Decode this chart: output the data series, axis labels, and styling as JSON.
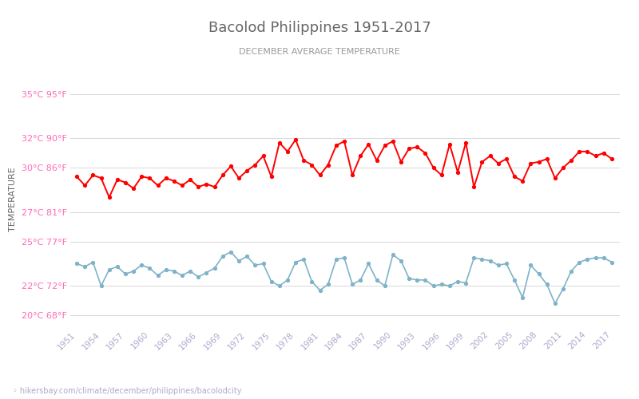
{
  "title": "Bacolod Philippines 1951-2017",
  "subtitle": "DECEMBER AVERAGE TEMPERATURE",
  "ylabel": "TEMPERATURE",
  "url_text": "hikersbay.com/climate/december/philippines/bacolodcity",
  "background_color": "#ffffff",
  "grid_color": "#d8d8d8",
  "title_color": "#666666",
  "subtitle_color": "#999999",
  "ylabel_color": "#666666",
  "tick_label_color": "#aaaacc",
  "ytick_color": "#ff69b4",
  "night_color": "#7fb3c8",
  "day_color": "#ff0000",
  "years": [
    1951,
    1952,
    1953,
    1954,
    1955,
    1956,
    1957,
    1958,
    1959,
    1960,
    1961,
    1962,
    1963,
    1964,
    1965,
    1966,
    1967,
    1968,
    1969,
    1970,
    1971,
    1972,
    1973,
    1974,
    1975,
    1976,
    1977,
    1978,
    1979,
    1980,
    1981,
    1982,
    1983,
    1984,
    1985,
    1986,
    1987,
    1988,
    1989,
    1990,
    1991,
    1992,
    1993,
    1994,
    1995,
    1996,
    1997,
    1998,
    1999,
    2000,
    2001,
    2002,
    2003,
    2004,
    2005,
    2006,
    2007,
    2008,
    2009,
    2010,
    2011,
    2012,
    2013,
    2014,
    2015,
    2016,
    2017
  ],
  "day_temps": [
    29.4,
    28.8,
    29.5,
    29.3,
    28.0,
    29.2,
    29.0,
    28.6,
    29.4,
    29.3,
    28.8,
    29.3,
    29.1,
    28.8,
    29.2,
    28.7,
    28.9,
    28.7,
    29.5,
    30.1,
    29.3,
    29.8,
    30.2,
    30.8,
    29.4,
    31.7,
    31.1,
    31.9,
    30.5,
    30.2,
    29.5,
    30.2,
    31.5,
    31.8,
    29.5,
    30.8,
    31.6,
    30.5,
    31.5,
    31.8,
    30.4,
    31.3,
    31.4,
    31.0,
    30.0,
    29.5,
    31.6,
    29.7,
    31.7,
    28.7,
    30.4,
    30.8,
    30.3,
    30.6,
    29.4,
    29.1,
    30.3,
    30.4,
    30.6,
    29.3,
    30.0,
    30.5,
    31.1,
    31.1,
    30.8,
    31.0,
    30.6
  ],
  "night_temps": [
    23.5,
    23.3,
    23.6,
    22.0,
    23.1,
    23.3,
    22.8,
    23.0,
    23.4,
    23.2,
    22.7,
    23.1,
    23.0,
    22.7,
    23.0,
    22.6,
    22.9,
    23.2,
    24.0,
    24.3,
    23.7,
    24.0,
    23.4,
    23.5,
    22.3,
    22.0,
    22.4,
    23.6,
    23.8,
    22.3,
    21.7,
    22.1,
    23.8,
    23.9,
    22.1,
    22.4,
    23.5,
    22.4,
    22.0,
    24.1,
    23.7,
    22.5,
    22.4,
    22.4,
    22.0,
    22.1,
    22.0,
    22.3,
    22.2,
    23.9,
    23.8,
    23.7,
    23.4,
    23.5,
    22.4,
    21.2,
    23.4,
    22.8,
    22.1,
    20.8,
    21.8,
    23.0,
    23.6,
    23.8,
    23.9,
    23.9,
    23.6
  ],
  "yticks_c": [
    20,
    22,
    25,
    27,
    30,
    32,
    35
  ],
  "yticks_f": [
    68,
    72,
    77,
    81,
    86,
    90,
    95
  ],
  "ylim": [
    19.2,
    36.5
  ],
  "xlim": [
    1950.2,
    2018
  ],
  "xticks": [
    1951,
    1954,
    1957,
    1960,
    1963,
    1966,
    1969,
    1972,
    1975,
    1978,
    1981,
    1984,
    1987,
    1990,
    1993,
    1996,
    1999,
    2002,
    2005,
    2008,
    2011,
    2014,
    2017
  ]
}
